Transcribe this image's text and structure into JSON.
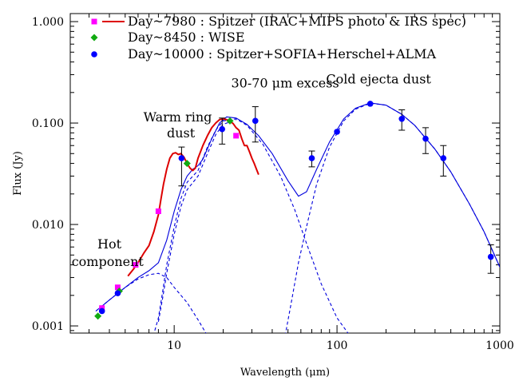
{
  "chart_data": {
    "type": "scatter",
    "title": "",
    "xlabel": "Wavelength (μm)",
    "ylabel": "Flux (Jy)",
    "x_scale": "log",
    "y_scale": "log",
    "xlim": [
      2.3,
      1000
    ],
    "ylim": [
      0.00085,
      1.2
    ],
    "grid": false,
    "legend_position": "top-left",
    "x_ticks": [
      {
        "value": 10,
        "label": "10"
      },
      {
        "value": 100,
        "label": "100"
      },
      {
        "value": 1000,
        "label": "1000"
      }
    ],
    "y_ticks": [
      {
        "value": 0.001,
        "label": "0.001"
      },
      {
        "value": 0.01,
        "label": "0.010"
      },
      {
        "value": 0.1,
        "label": "0.100"
      },
      {
        "value": 1,
        "label": "1.000"
      }
    ],
    "legend": [
      {
        "label": "Day~7980 : Spitzer (IRAC+MIPS photo & IRS spec)",
        "marker": "square",
        "color": "#ff00ff",
        "line_color": "#dd0000"
      },
      {
        "label": "Day~8450 : WISE",
        "marker": "diamond",
        "color": "#11aa11"
      },
      {
        "label": "Day~10000 : Spitzer+SOFIA+Herschel+ALMA",
        "marker": "circle",
        "color": "#0000ff"
      }
    ],
    "annotations": [
      {
        "text": "Hot",
        "x": 4.0,
        "y": 0.0058
      },
      {
        "text": "component",
        "x": 3.9,
        "y": 0.0039
      },
      {
        "text": "Warm ring",
        "x": 10.5,
        "y": 0.104
      },
      {
        "text": "dust",
        "x": 11.0,
        "y": 0.072
      },
      {
        "text": "30-70 μm excess",
        "x": 48,
        "y": 0.225
      },
      {
        "text": "Cold ejecta dust",
        "x": 180,
        "y": 0.245
      }
    ],
    "series": [
      {
        "name": "Day~7980 : Spitzer (IRAC+MIPS photo & IRS spec)",
        "kind": "points",
        "marker": "square",
        "color": "#ff00ff",
        "x": [
          3.6,
          4.5,
          5.8,
          8.0,
          24.0
        ],
        "y": [
          0.0015,
          0.0024,
          0.004,
          0.0135,
          0.075
        ]
      },
      {
        "name": "Day~7980 : Spitzer (IRAC+MIPS photo & IRS spec)",
        "kind": "spectrum",
        "color": "#dd0000",
        "x": [
          5.2,
          5.6,
          6.0,
          6.5,
          7.0,
          7.5,
          8.0,
          8.3,
          8.6,
          9.0,
          9.4,
          9.8,
          10.2,
          10.6,
          11.0,
          11.5,
          12.0,
          12.5,
          13.0,
          13.5,
          14.0,
          15.0,
          16.0,
          17.0,
          18.0,
          19.0,
          20.0,
          21.0,
          22.0,
          23.0,
          24.0,
          25.0,
          26.0,
          27.0,
          28.0,
          29.0,
          30.0,
          31.0,
          32.0,
          33.0
        ],
        "y": [
          0.0031,
          0.0036,
          0.0042,
          0.0052,
          0.0062,
          0.0085,
          0.0125,
          0.018,
          0.025,
          0.035,
          0.045,
          0.05,
          0.051,
          0.049,
          0.05,
          0.046,
          0.04,
          0.036,
          0.034,
          0.036,
          0.045,
          0.06,
          0.075,
          0.09,
          0.1,
          0.108,
          0.11,
          0.108,
          0.104,
          0.099,
          0.09,
          0.085,
          0.07,
          0.06,
          0.06,
          0.052,
          0.045,
          0.04,
          0.035,
          0.031
        ]
      },
      {
        "name": "Day~8450 : WISE",
        "kind": "points",
        "marker": "diamond",
        "color": "#11aa11",
        "x": [
          3.4,
          4.6,
          12.0,
          22.0
        ],
        "y": [
          0.00125,
          0.0022,
          0.04,
          0.105
        ]
      },
      {
        "name": "Day~10000 : Spitzer+SOFIA+Herschel+ALMA",
        "kind": "points",
        "marker": "circle",
        "color": "#0000ff",
        "x": [
          3.6,
          4.5,
          11.1,
          19.7,
          31.5,
          70,
          100,
          160,
          250,
          350,
          450,
          880
        ],
        "y": [
          0.0014,
          0.0021,
          0.045,
          0.087,
          0.105,
          0.045,
          0.082,
          0.155,
          0.11,
          0.07,
          0.045,
          0.0048
        ],
        "err_low": [
          null,
          null,
          0.021,
          0.025,
          0.04,
          0.008,
          null,
          null,
          0.025,
          0.02,
          0.015,
          0.0015
        ],
        "err_high": [
          null,
          null,
          0.013,
          0.025,
          0.04,
          0.008,
          null,
          null,
          0.025,
          0.02,
          0.015,
          0.0015
        ]
      },
      {
        "name": "",
        "kind": "model-total",
        "color": "#0000dd",
        "x": [
          3.3,
          4.0,
          5.0,
          6.0,
          7.0,
          8.0,
          9.0,
          10.0,
          11.0,
          12.0,
          13.0,
          14.0,
          15.0,
          17.0,
          19.0,
          21.0,
          24.0,
          28.0,
          33.0,
          40.0,
          50.0,
          58.0,
          65.0,
          75.0,
          90.0,
          110.0,
          130.0,
          160.0,
          200.0,
          250.0,
          300.0,
          400.0,
          500.0,
          650.0,
          800.0,
          1000.0
        ],
        "y": [
          0.0014,
          0.0018,
          0.0024,
          0.003,
          0.0035,
          0.0042,
          0.007,
          0.0135,
          0.022,
          0.03,
          0.035,
          0.038,
          0.044,
          0.07,
          0.1,
          0.115,
          0.112,
          0.097,
          0.075,
          0.05,
          0.027,
          0.019,
          0.021,
          0.035,
          0.065,
          0.11,
          0.14,
          0.158,
          0.15,
          0.122,
          0.095,
          0.055,
          0.033,
          0.016,
          0.0085,
          0.0038
        ]
      },
      {
        "name": "",
        "kind": "model-hot-component",
        "color": "#0000dd",
        "dashed": true,
        "x": [
          3.3,
          4.0,
          5.0,
          6.0,
          7.0,
          8.0,
          9.0,
          10.0,
          12.0,
          14.0,
          16.0
        ],
        "y": [
          0.0014,
          0.0018,
          0.0024,
          0.0029,
          0.0032,
          0.0033,
          0.003,
          0.0024,
          0.0017,
          0.00115,
          0.0008
        ]
      },
      {
        "name": "",
        "kind": "model-warm-component",
        "color": "#0000dd",
        "dashed": true,
        "x": [
          7.6,
          8.0,
          8.5,
          9.0,
          10.0,
          11.0,
          12.0,
          14.0,
          16.0,
          18.0,
          20.0,
          24.0,
          28.0,
          35.0,
          45.0,
          55.0,
          65.0,
          80.0,
          100.0,
          120.0
        ],
        "y": [
          0.0009,
          0.0012,
          0.0022,
          0.004,
          0.0095,
          0.018,
          0.026,
          0.034,
          0.058,
          0.085,
          0.105,
          0.11,
          0.095,
          0.062,
          0.03,
          0.014,
          0.0065,
          0.0026,
          0.0012,
          0.0008
        ]
      },
      {
        "name": "",
        "kind": "model-warm-component-alt",
        "color": "#0000dd",
        "dashed": true,
        "x": [
          8.0,
          8.5,
          9.0,
          10.0,
          11.0,
          12.0,
          14.0,
          16.0,
          18.0,
          20.0,
          24.0
        ],
        "y": [
          0.0011,
          0.0019,
          0.0033,
          0.008,
          0.015,
          0.022,
          0.03,
          0.05,
          0.077,
          0.097,
          0.108
        ]
      },
      {
        "name": "",
        "kind": "model-cold-component",
        "color": "#0000dd",
        "dashed": true,
        "x": [
          48.0,
          52.0,
          58.0,
          65.0,
          75.0,
          90.0,
          110.0,
          130.0,
          160.0,
          200.0,
          250.0,
          300.0,
          400.0,
          500.0,
          650.0,
          800.0,
          1000.0
        ],
        "y": [
          0.0008,
          0.0016,
          0.0042,
          0.0095,
          0.025,
          0.058,
          0.105,
          0.137,
          0.157,
          0.15,
          0.122,
          0.095,
          0.055,
          0.033,
          0.016,
          0.0085,
          0.0038
        ]
      }
    ]
  }
}
